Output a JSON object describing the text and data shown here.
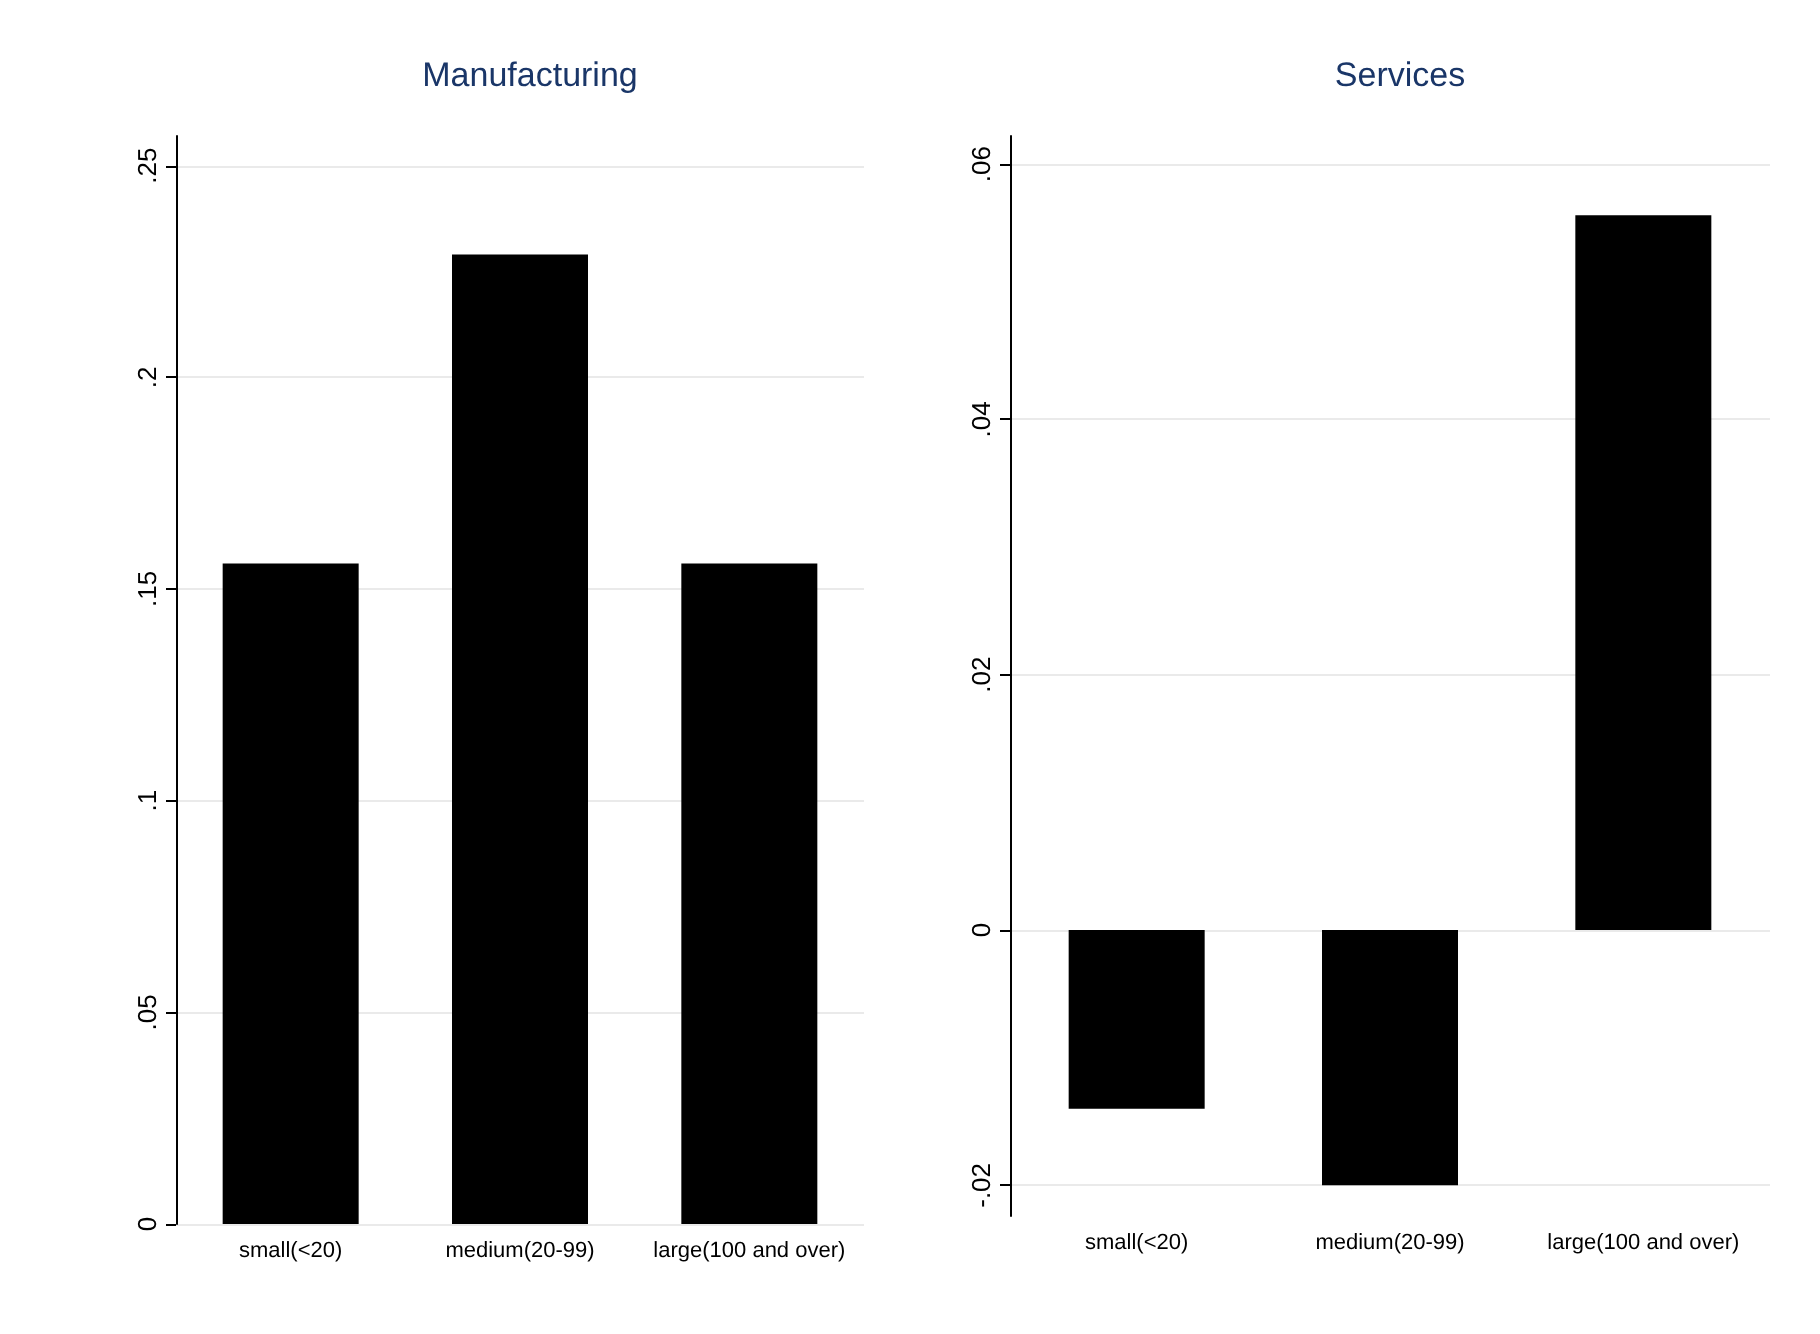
{
  "chart_data": [
    {
      "type": "bar",
      "title": "Manufacturing",
      "categories": [
        "small(<20)",
        "medium(20-99)",
        "large(100 and over)"
      ],
      "values": [
        0.156,
        0.229,
        0.156
      ],
      "color": "#000000",
      "ylim": [
        0,
        0.257
      ],
      "yticks": [
        0,
        {
          "value": 0.05,
          "label": ".05"
        },
        {
          "value": 0.1,
          "label": ".1"
        },
        {
          "value": 0.15,
          "label": ".15"
        },
        {
          "value": 0.2,
          "label": ".2"
        },
        {
          "value": 0.25,
          "label": ".25"
        }
      ],
      "grid": "y"
    },
    {
      "type": "bar",
      "title": "Services",
      "categories": [
        "small(<20)",
        "medium(20-99)",
        "large(100 and over)"
      ],
      "values": [
        -0.014,
        -0.02,
        0.056
      ],
      "color": "#000000",
      "ylim": [
        -0.0224,
        0.0622
      ],
      "yticks": [
        {
          "value": -0.02,
          "label": "-.02"
        },
        0,
        {
          "value": 0.02,
          "label": ".02"
        },
        {
          "value": 0.04,
          "label": ".04"
        },
        {
          "value": 0.06,
          "label": ".06"
        }
      ],
      "grid": "y"
    }
  ]
}
